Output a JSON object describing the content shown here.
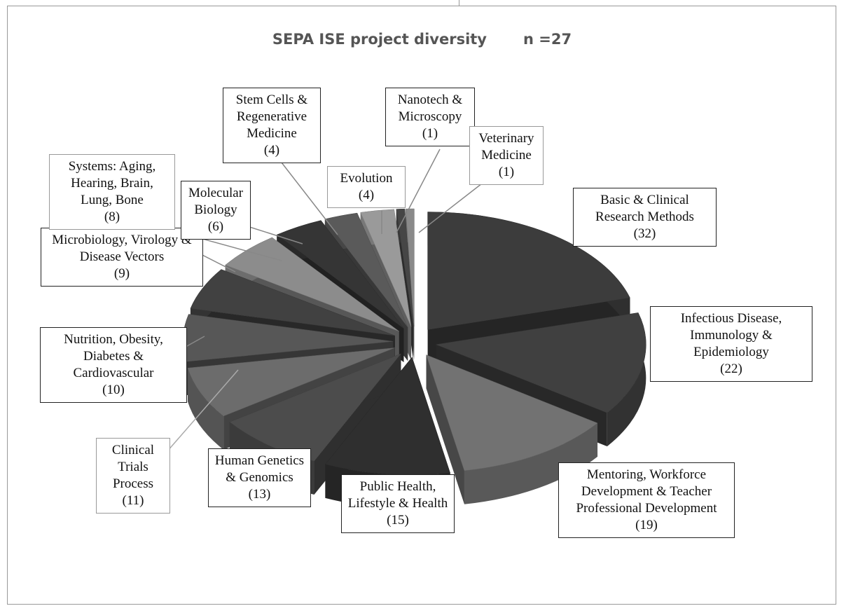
{
  "chart_data": {
    "type": "pie",
    "title": "SEPA ISE project diversity",
    "note": "n =27",
    "categories": [
      "Basic & Clinical Research Methods",
      "Infectious Disease, Immunology & Epidemiology",
      "Mentoring, Workforce Development & Teacher Professional Development",
      "Public Health, Lifestyle & Health",
      "Human Genetics & Genomics",
      "Clinical Trials Process",
      "Nutrition, Obesity, Diabetes & Cardiovascular",
      "Microbiology, Virology & Disease Vectors",
      "Systems: Aging, Hearing, Brain, Lung, Bone",
      "Molecular Biology",
      "Stem Cells & Regenerative Medicine",
      "Evolution",
      "Nanotech & Microscopy",
      "Veterinary Medicine"
    ],
    "values": [
      32,
      22,
      19,
      15,
      13,
      11,
      10,
      9,
      8,
      6,
      4,
      4,
      1,
      1
    ],
    "value_labels": [
      "(32)",
      "(22)",
      "(19)",
      "(15)",
      "(13)",
      "(11)",
      "(10)",
      "(9)",
      "(8)",
      "(6)",
      "(4)",
      "(4)",
      "(1)",
      "(1)"
    ],
    "colors": [
      "#3c3c3c",
      "#404040",
      "#727272",
      "#2f2f2f",
      "#4c4c4c",
      "#6c6c6c",
      "#575757",
      "#414141",
      "#8c8c8c",
      "#353535",
      "#5a5a5a",
      "#9a9a9a",
      "#464646",
      "#8a8a8a"
    ]
  }
}
